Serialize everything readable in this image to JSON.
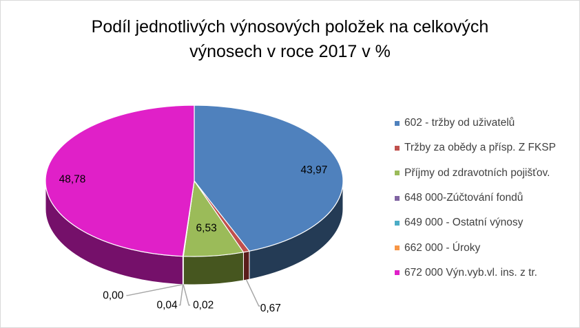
{
  "chart_data": {
    "type": "pie",
    "title_lines": [
      "Podíl jednotlivých výnosových položek na celkových",
      "výnosech v roce 2017 v %"
    ],
    "legend_position": "right",
    "slices": [
      {
        "label": "602 - tržby od uživatelů",
        "value": 43.97,
        "value_label": "43,97",
        "color": "#4f81bd",
        "side_color": "#243b55"
      },
      {
        "label": "Tržby za obědy a přísp. Z FKSP",
        "value": 0.67,
        "value_label": "0,67",
        "color": "#c0504d",
        "side_color": "#5a1d1b"
      },
      {
        "label": "Příjmy od zdravotních pojišťov.",
        "value": 6.53,
        "value_label": "6,53",
        "color": "#9bbb59",
        "side_color": "#46561f"
      },
      {
        "label": "648 000-Zúčtování fondů",
        "value": 0.02,
        "value_label": "0,02",
        "color": "#8064a2",
        "side_color": "#3b2b4e"
      },
      {
        "label": "649 000 - Ostatní výnosy",
        "value": 0.04,
        "value_label": "0,04",
        "color": "#4bacc6",
        "side_color": "#205664"
      },
      {
        "label": "662 000 - Úroky",
        "value": 0.0,
        "value_label": "0,00",
        "color": "#f79646",
        "side_color": "#7b410f"
      },
      {
        "label": "672 000 Výn.vyb.vl. ins. z tr.",
        "value": 48.78,
        "value_label": "48,78",
        "color": "#e020c8",
        "side_color": "#75106a"
      }
    ]
  }
}
